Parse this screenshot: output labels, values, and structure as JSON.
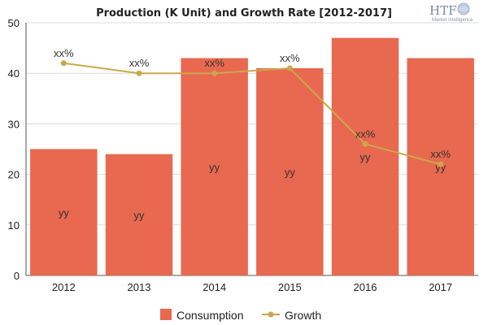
{
  "chart_data": {
    "type": "bar",
    "title": "Production (K Unit) and Growth Rate [2012-2017]",
    "categories": [
      "2012",
      "2013",
      "2014",
      "2015",
      "2016",
      "2017"
    ],
    "ylim": [
      0,
      50
    ],
    "yticks": [
      0,
      10,
      20,
      30,
      40,
      50
    ],
    "series": [
      {
        "name": "Consumption",
        "type": "bar",
        "color": "#e8694f",
        "values": [
          25,
          24,
          43,
          41,
          47,
          43
        ],
        "labels": [
          "yy",
          "yy",
          "yy",
          "yy",
          "yy",
          "yy"
        ]
      },
      {
        "name": "Growth",
        "type": "line",
        "color": "#c9a84a",
        "values": [
          42,
          40,
          40,
          41,
          26,
          22
        ],
        "labels": [
          "xx%",
          "xx%",
          "xx%",
          "xx%",
          "xx%",
          "xx%"
        ]
      }
    ],
    "grid": true,
    "legend_position": "bottom"
  },
  "logo": {
    "text": "HTF",
    "subtitle": "Market Intelligence",
    "icon": "globe-icon"
  }
}
